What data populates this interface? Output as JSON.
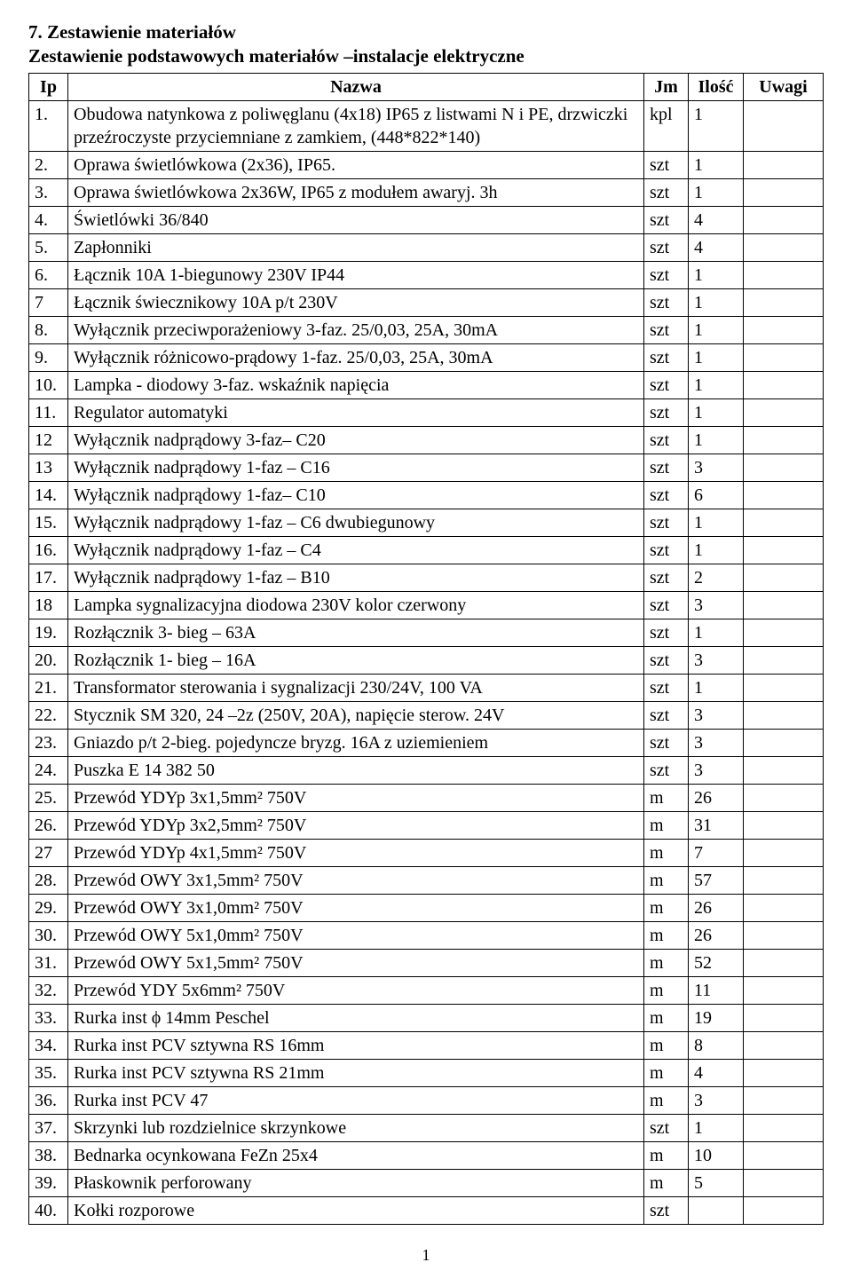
{
  "heading": "7. Zestawienie materiałów",
  "subheading": "Zestawienie podstawowych materiałów –instalacje elektryczne",
  "page_number": "1",
  "columns": {
    "ip": "Ip",
    "name": "Nazwa",
    "jm": "Jm",
    "qty": "Ilość",
    "remarks": "Uwagi"
  },
  "rows": [
    {
      "ip": "1.",
      "name": "Obudowa natynkowa z poliwęglanu  (4x18) IP65 z listwami N i PE, drzwiczki przeźroczyste przyciemniane z zamkiem, (448*822*140)",
      "jm": "kpl",
      "qty": "1"
    },
    {
      "ip": "2.",
      "name": "Oprawa świetlówkowa  (2x36), IP65.",
      "jm": "szt",
      "qty": "1"
    },
    {
      "ip": "3.",
      "name": "Oprawa świetlówkowa 2x36W, IP65 z modułem awaryj. 3h",
      "jm": "szt",
      "qty": "1"
    },
    {
      "ip": "4.",
      "name": "Świetlówki  36/840",
      "jm": "szt",
      "qty": "4"
    },
    {
      "ip": "5.",
      "name": "Zapłonniki",
      "jm": "szt",
      "qty": "4"
    },
    {
      "ip": "6.",
      "name": "Łącznik 10A  1-biegunowy  230V  IP44",
      "jm": "szt",
      "qty": "1"
    },
    {
      "ip": "7",
      "name": "Łącznik świecznikowy 10A  p/t  230V",
      "jm": "szt",
      "qty": "1"
    },
    {
      "ip": "8.",
      "name": "Wyłącznik przeciwporażeniowy  3-faz.  25/0,03,  25A, 30mA",
      "jm": "szt",
      "qty": "1"
    },
    {
      "ip": "9.",
      "name": "Wyłącznik różnicowo-prądowy 1-faz.  25/0,03,  25A, 30mA",
      "jm": "szt",
      "qty": "1"
    },
    {
      "ip": "10.",
      "name": "Lampka - diodowy 3-faz. wskaźnik napięcia",
      "jm": "szt",
      "qty": "1"
    },
    {
      "ip": "11.",
      "name": "Regulator automatyki",
      "jm": "szt",
      "qty": "1"
    },
    {
      "ip": "12",
      "name": "Wyłącznik nadprądowy  3-faz– C20",
      "jm": "szt",
      "qty": "1"
    },
    {
      "ip": "13",
      "name": "Wyłącznik nadprądowy  1-faz – C16",
      "jm": "szt",
      "qty": "3"
    },
    {
      "ip": "14.",
      "name": "Wyłącznik nadprądowy   1-faz– C10",
      "jm": "szt",
      "qty": "6"
    },
    {
      "ip": "15.",
      "name": "Wyłącznik nadprądowy   1-faz – C6 dwubiegunowy",
      "jm": "szt",
      "qty": "1"
    },
    {
      "ip": "16.",
      "name": "Wyłącznik nadprądowy   1-faz – C4",
      "jm": "szt",
      "qty": "1"
    },
    {
      "ip": "17.",
      "name": "Wyłącznik nadprądowy   1-faz – B10",
      "jm": "szt",
      "qty": "2"
    },
    {
      "ip": "18",
      "name": "Lampka sygnalizacyjna diodowa  230V  kolor czerwony",
      "jm": "szt",
      "qty": "3"
    },
    {
      "ip": "19.",
      "name": "Rozłącznik 3- bieg – 63A",
      "jm": "szt",
      "qty": "1"
    },
    {
      "ip": "20.",
      "name": "Rozłącznik 1- bieg – 16A",
      "jm": "szt",
      "qty": "3"
    },
    {
      "ip": "21.",
      "name": "Transformator sterowania i sygnalizacji 230/24V, 100 VA",
      "jm": "szt",
      "qty": "1"
    },
    {
      "ip": "22.",
      "name": "Stycznik SM 320, 24 –2z  (250V, 20A), napięcie sterow. 24V",
      "jm": "szt",
      "qty": "3"
    },
    {
      "ip": "23.",
      "name": "Gniazdo p/t 2-bieg. pojedyncze bryzg. 16A z uziemieniem",
      "jm": "szt",
      "qty": "3"
    },
    {
      "ip": "24.",
      "name": "Puszka E 14 382 50",
      "jm": "szt",
      "qty": "3"
    },
    {
      "ip": "25.",
      "name": "Przewód YDYp 3x1,5mm²   750V",
      "jm": "m",
      "qty": "26"
    },
    {
      "ip": "26.",
      "name": "Przewód YDYp 3x2,5mm²   750V",
      "jm": "m",
      "qty": "31"
    },
    {
      "ip": "27",
      "name": "Przewód YDYp 4x1,5mm²   750V",
      "jm": " m",
      "qty": "7"
    },
    {
      "ip": "28.",
      "name": "Przewód OWY 3x1,5mm²   750V",
      "jm": " m",
      "qty": "57"
    },
    {
      "ip": "29.",
      "name": "Przewód OWY 3x1,0mm²   750V",
      "jm": " m",
      "qty": "26"
    },
    {
      "ip": "30.",
      "name": "Przewód OWY 5x1,0mm²   750V",
      "jm": " m",
      "qty": "26"
    },
    {
      "ip": "31.",
      "name": "Przewód OWY 5x1,5mm²   750V",
      "jm": " m",
      "qty": "52"
    },
    {
      "ip": "32.",
      "name": "Przewód YDY 5x6mm²   750V",
      "jm": " m",
      "qty": "11"
    },
    {
      "ip": "33.",
      "name": "Rurka inst  ϕ 14mm Peschel",
      "jm": " m",
      "qty": "19"
    },
    {
      "ip": "34.",
      "name": "Rurka inst  PCV sztywna RS 16mm",
      "jm": " m",
      "qty": "8"
    },
    {
      "ip": "35.",
      "name": "Rurka inst  PCV sztywna RS 21mm",
      "jm": " m",
      "qty": "4"
    },
    {
      "ip": "36.",
      "name": "Rurka inst  PCV 47",
      "jm": " m",
      "qty": "3"
    },
    {
      "ip": "37.",
      "name": "Skrzynki lub rozdzielnice skrzynkowe",
      "jm": " szt",
      "qty": "1"
    },
    {
      "ip": "38.",
      "name": "Bednarka ocynkowana FeZn 25x4",
      "jm": " m",
      "qty": "10"
    },
    {
      "ip": "39.",
      "name": "Płaskownik perforowany",
      "jm": " m",
      "qty": "5"
    },
    {
      "ip": "40.",
      "name": "Kołki rozporowe",
      "jm": " szt",
      "qty": ""
    }
  ]
}
